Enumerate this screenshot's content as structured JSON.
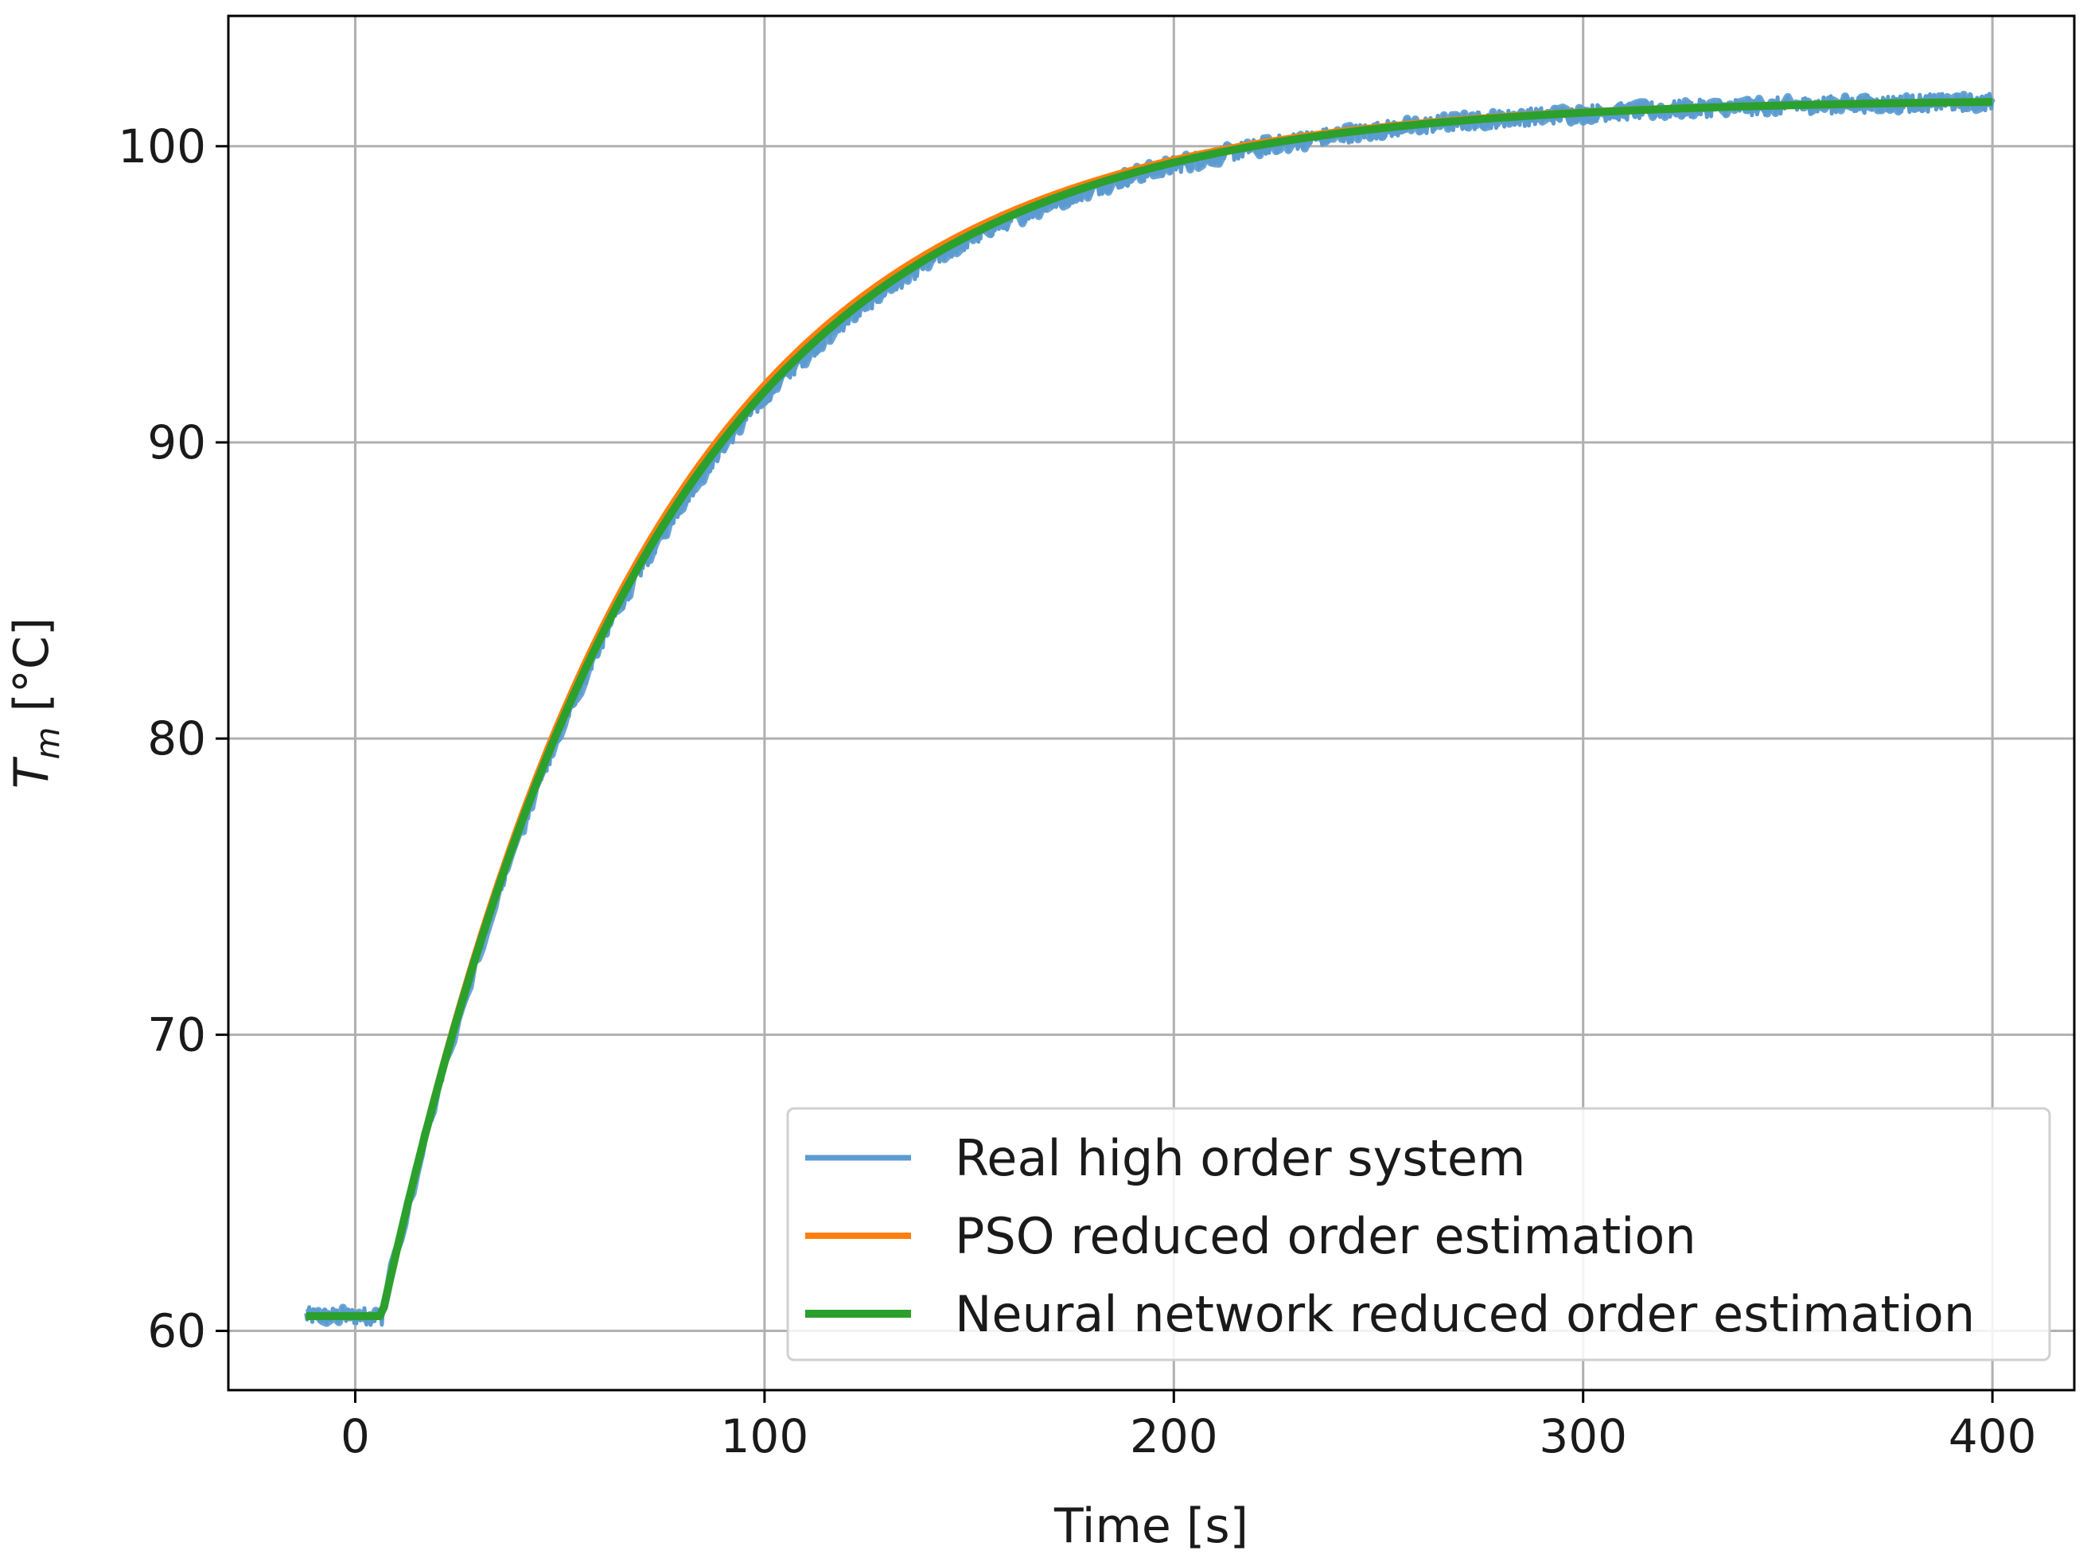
{
  "chart_data": {
    "type": "line",
    "title": "",
    "xlabel": "Time [s]",
    "ylabel": "T_m [°C]",
    "ylabel_main": "T",
    "ylabel_sub": "m",
    "ylabel_unit": " [°C]",
    "xlim": [
      -31,
      420
    ],
    "ylim": [
      58,
      104.4
    ],
    "xticks": [
      0,
      100,
      200,
      300,
      400
    ],
    "yticks": [
      60,
      70,
      80,
      90,
      100
    ],
    "xtick_labels": [
      "0",
      "100",
      "200",
      "300",
      "400"
    ],
    "ytick_labels": [
      "60",
      "70",
      "80",
      "90",
      "100"
    ],
    "grid": true,
    "legend_position": "lower right",
    "model": {
      "x_start": -12,
      "x_step": 6.5,
      "y_initial": 60.5,
      "y_final": 101.6,
      "time_constant": 65
    },
    "series": [
      {
        "name": "Real high order system",
        "color": "#5b9bd0",
        "noise_amplitude": 0.3,
        "x": [
          -12,
          6.5,
          25,
          50,
          75,
          100,
          125,
          150,
          175,
          200,
          250,
          300,
          350,
          400
        ],
        "y": [
          60.5,
          60.5,
          70.5,
          79.5,
          87.5,
          92.8,
          95.6,
          97.6,
          98.9,
          99.7,
          100.8,
          101.2,
          101.5,
          101.7
        ]
      },
      {
        "name": "PSO reduced order estimation",
        "color": "#ff7f0e",
        "x": [
          -12,
          6.5,
          25,
          50,
          75,
          100,
          125,
          150,
          175,
          200,
          250,
          300,
          350,
          400
        ],
        "y": [
          60.5,
          60.5,
          70.9,
          80.2,
          86.6,
          91.8,
          95.2,
          97.3,
          98.7,
          99.6,
          100.7,
          101.2,
          101.5,
          101.6
        ]
      },
      {
        "name": "Neural network reduced order estimation",
        "color": "#2ca02c",
        "x": [
          -12,
          6.5,
          25,
          50,
          75,
          100,
          125,
          150,
          175,
          200,
          250,
          300,
          350,
          400
        ],
        "y": [
          60.5,
          60.5,
          70.8,
          80.0,
          86.4,
          91.6,
          95.0,
          97.1,
          98.6,
          99.5,
          100.6,
          101.1,
          101.4,
          101.5
        ]
      }
    ],
    "colors": {
      "grid": "#b0b0b0",
      "frame": "#000000",
      "legend_border": "#d0d0d0"
    }
  }
}
